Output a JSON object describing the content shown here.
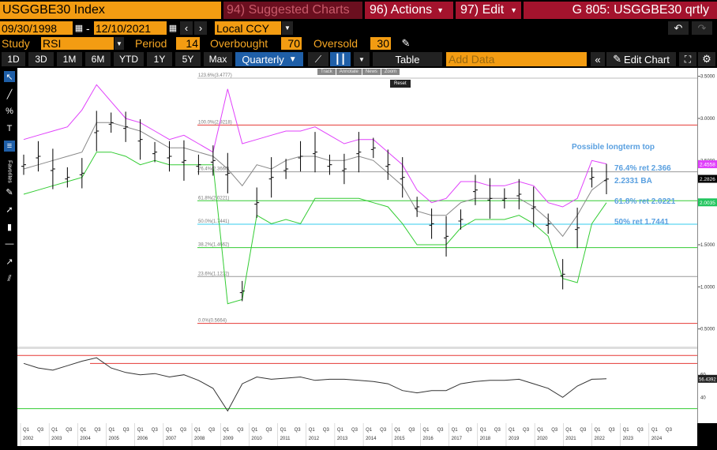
{
  "header": {
    "ticker": "USGGBE30 Index",
    "suggested": "94) Suggested Charts",
    "actions": "96) Actions",
    "edit": "97) Edit",
    "title": "G 805: USGGBE30 qrtly"
  },
  "dates": {
    "start": "09/30/1998",
    "end": "12/10/2021",
    "currency": "Local CCY"
  },
  "study": {
    "label": "Study",
    "value": "RSI",
    "period_label": "Period",
    "period": "14",
    "overbought_label": "Overbought",
    "overbought": "70",
    "oversold_label": "Oversold",
    "oversold": "30"
  },
  "periods": [
    "1D",
    "3D",
    "1M",
    "6M",
    "YTD",
    "1Y",
    "5Y",
    "Max"
  ],
  "frequency": "Quarterly",
  "table_label": "Table",
  "add_data_placeholder": "Add Data",
  "edit_chart": "Edit Chart",
  "minitools": {
    "track": "Track",
    "annotate": "Annotate",
    "news": "News",
    "zoom": "Zoom",
    "reset": "Reset"
  },
  "fib": [
    {
      "label": "123.6%(3.4777)",
      "value": 3.4777,
      "color": "#bbbbbb"
    },
    {
      "label": "100.0%(2.9218)",
      "value": 2.9218,
      "color": "#e53935"
    },
    {
      "label": "76.4%(2.3660)",
      "value": 2.366,
      "color": "#999999"
    },
    {
      "label": "61.8%(2.0221)",
      "value": 2.0221,
      "color": "#33cc33"
    },
    {
      "label": "50.0%(1.7441)",
      "value": 1.7441,
      "color": "#33ccee"
    },
    {
      "label": "38.2%(1.4662)",
      "value": 1.4662,
      "color": "#33cc33"
    },
    {
      "label": "23.6%(1.1222)",
      "value": 1.1222,
      "color": "#999999"
    },
    {
      "label": "0.0%(0.5664)",
      "value": 0.5664,
      "color": "#e53935"
    }
  ],
  "annotations": {
    "top": "Possible longterm top",
    "r764": "76.4% ret 2.366",
    "ba": "2.2331 BA",
    "r618": "61.8% ret 2.0221",
    "r50": "50% ret 1.7441"
  },
  "price_axis": {
    "ticks": [
      "3.5000",
      "3.0000",
      "2.5000",
      "2.0000",
      "1.5000",
      "1.0000",
      "0.5000"
    ],
    "tags": [
      {
        "text": "2.4558",
        "bg": "#e040fb"
      },
      {
        "text": "2.2826",
        "bg": "#000000"
      },
      {
        "text": "2.0035",
        "bg": "#22c55e"
      }
    ]
  },
  "rsi_axis": {
    "ticks": [
      "60",
      "40"
    ],
    "tag": "56.4392"
  },
  "x_axis": {
    "years": [
      "2002",
      "2003",
      "2004",
      "2005",
      "2006",
      "2007",
      "2008",
      "2009",
      "2010",
      "2011",
      "2012",
      "2013",
      "2014",
      "2015",
      "2016",
      "2017",
      "2018",
      "2019",
      "2020",
      "2021",
      "2022",
      "2023",
      "2024"
    ],
    "q1": "Q1",
    "q3": "Q3"
  },
  "chart_data": {
    "type": "line",
    "frequency": "quarterly",
    "x": [
      "2001Q3",
      "2002Q1",
      "2002Q3",
      "2003Q1",
      "2003Q3",
      "2004Q1",
      "2004Q3",
      "2005Q1",
      "2005Q3",
      "2006Q1",
      "2006Q3",
      "2007Q1",
      "2007Q3",
      "2008Q1",
      "2008Q3",
      "2009Q1",
      "2009Q3",
      "2010Q1",
      "2010Q3",
      "2011Q1",
      "2011Q3",
      "2012Q1",
      "2012Q3",
      "2013Q1",
      "2013Q3",
      "2014Q1",
      "2014Q3",
      "2015Q1",
      "2015Q3",
      "2016Q1",
      "2016Q3",
      "2017Q1",
      "2017Q3",
      "2018Q1",
      "2018Q3",
      "2019Q1",
      "2019Q3",
      "2020Q1",
      "2020Q3",
      "2021Q1",
      "2021Q3"
    ],
    "ylim": [
      0.3,
      3.6
    ],
    "series": [
      {
        "values": [
          2.45,
          2.55,
          2.4,
          2.3,
          2.35,
          2.85,
          2.95,
          2.9,
          2.75,
          2.6,
          2.55,
          2.5,
          2.45,
          2.5,
          2.35,
          0.95,
          2.0,
          2.3,
          2.4,
          2.55,
          2.6,
          2.45,
          2.4,
          2.6,
          2.65,
          2.45,
          2.3,
          1.95,
          1.75,
          1.6,
          1.8,
          2.15,
          2.05,
          2.05,
          2.1,
          1.95,
          1.75,
          1.15,
          1.7,
          2.3,
          2.28
        ]
      },
      {
        "values": [
          2.75,
          2.8,
          2.85,
          2.9,
          3.1,
          3.4,
          3.2,
          3.0,
          2.95,
          2.85,
          2.75,
          2.8,
          2.7,
          2.6,
          3.35,
          2.7,
          2.75,
          2.8,
          2.85,
          2.85,
          2.9,
          2.8,
          2.7,
          2.75,
          2.75,
          2.6,
          2.45,
          2.15,
          2.0,
          2.05,
          2.25,
          2.25,
          2.2,
          2.2,
          2.25,
          2.2,
          2.0,
          1.95,
          2.05,
          2.5,
          2.46
        ]
      },
      {
        "values": [
          2.4,
          2.45,
          2.5,
          2.55,
          2.6,
          2.95,
          2.95,
          2.9,
          2.85,
          2.75,
          2.65,
          2.65,
          2.6,
          2.55,
          2.4,
          2.2,
          2.45,
          2.4,
          2.5,
          2.55,
          2.55,
          2.5,
          2.5,
          2.55,
          2.5,
          2.35,
          2.2,
          1.9,
          1.85,
          1.85,
          2.0,
          2.05,
          2.05,
          2.05,
          2.05,
          1.95,
          1.8,
          1.6,
          1.85,
          2.15,
          2.28
        ]
      },
      {
        "values": [
          2.1,
          2.15,
          2.2,
          2.25,
          2.3,
          2.6,
          2.6,
          2.55,
          2.45,
          2.5,
          2.45,
          2.45,
          2.45,
          2.45,
          0.8,
          0.85,
          1.85,
          1.75,
          1.8,
          1.75,
          2.05,
          2.05,
          2.05,
          2.05,
          2.0,
          1.95,
          1.75,
          1.5,
          1.5,
          1.5,
          1.7,
          1.8,
          1.8,
          1.8,
          1.85,
          1.75,
          1.6,
          1.1,
          1.05,
          1.75,
          2.0
        ]
      }
    ],
    "rsi": [
      70,
      66,
      64,
      68,
      72,
      75,
      66,
      62,
      60,
      61,
      58,
      60,
      55,
      48,
      28,
      52,
      58,
      56,
      57,
      58,
      55,
      56,
      56,
      55,
      54,
      52,
      46,
      44,
      46,
      46,
      52,
      54,
      55,
      55,
      56,
      52,
      48,
      40,
      50,
      56,
      56.4
    ]
  }
}
